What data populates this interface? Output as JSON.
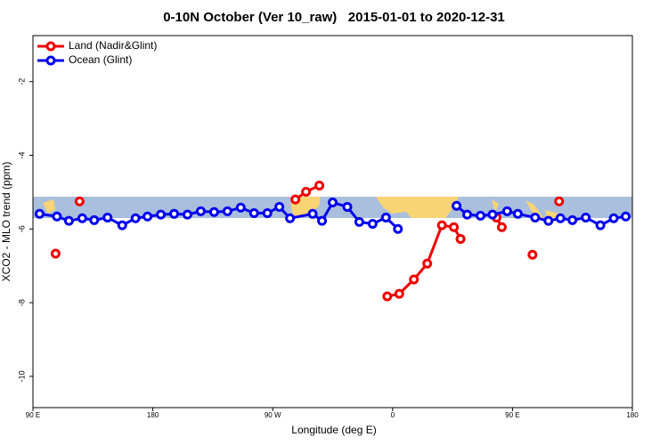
{
  "chart_data": {
    "type": "line",
    "title": "0-10N October (Ver 10_raw)   2015-01-01 to 2020-12-31",
    "xlabel": "Longitude (deg E)",
    "ylabel": "XCO2 - MLO trend (ppm)",
    "xlim": [
      90,
      540
    ],
    "ylim": [
      -10.85,
      -0.75
    ],
    "xticks": [
      {
        "value": 90,
        "label": "90 E"
      },
      180,
      {
        "value": 270,
        "label": "90 W"
      },
      {
        "value": 360,
        "label": "0"
      },
      {
        "value": 450,
        "label": "90 E"
      },
      {
        "value": 540,
        "label": "180"
      }
    ],
    "yticks": [
      -2,
      -4,
      -6,
      -8,
      -10
    ],
    "grid": false,
    "legend": "top-left",
    "series": [
      {
        "name": "Land (Nadir&Glint)",
        "color": "#ee0000",
        "x": [
          107,
          115,
          125,
          200,
          287,
          295,
          305,
          330,
          356,
          365,
          376,
          386,
          397,
          406,
          411,
          425,
          438,
          442,
          450,
          465,
          475,
          485
        ],
        "values": [
          -6.67,
          null,
          -5.25,
          null,
          -5.2,
          -4.99,
          -4.82,
          null,
          -7.83,
          -7.76,
          -7.37,
          -6.94,
          -5.9,
          -5.95,
          -6.27,
          null,
          -5.69,
          -5.95,
          null,
          -6.7,
          null,
          -5.25
        ]
      },
      {
        "name": "Ocean (Glint)",
        "color": "#0000ee",
        "x": [
          95,
          108,
          117,
          127,
          136,
          146,
          157,
          167,
          176,
          186,
          196,
          206,
          216,
          226,
          236,
          246,
          256,
          266,
          275,
          283,
          300,
          307,
          315,
          326,
          335,
          345,
          355,
          364,
          385,
          408,
          416,
          426,
          435,
          446,
          454,
          467,
          477,
          486,
          495,
          505,
          516,
          526,
          535
        ],
        "values": [
          -5.59,
          -5.66,
          -5.78,
          -5.71,
          -5.76,
          -5.69,
          -5.9,
          -5.71,
          -5.66,
          -5.61,
          -5.59,
          -5.61,
          -5.52,
          -5.54,
          -5.52,
          -5.42,
          -5.57,
          -5.57,
          -5.4,
          -5.71,
          -5.59,
          -5.78,
          -5.28,
          -5.4,
          -5.81,
          -5.86,
          -5.69,
          -6.0,
          null,
          -5.37,
          -5.61,
          -5.64,
          -5.61,
          -5.52,
          -5.59,
          -5.69,
          -5.78,
          -5.71,
          -5.76,
          -5.69,
          -5.9,
          -5.71,
          -5.66
        ]
      }
    ]
  }
}
